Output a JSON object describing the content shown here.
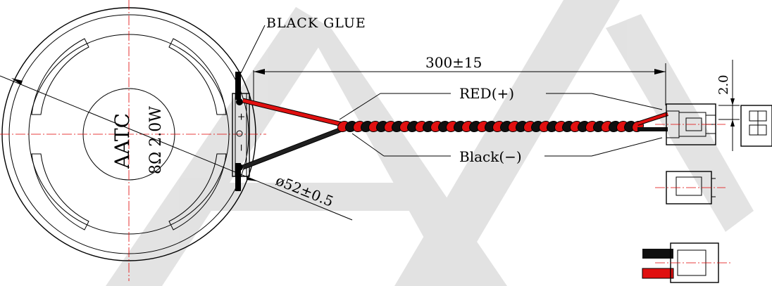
{
  "labels": {
    "black_glue": "BLACK GLUE",
    "length": "300±15",
    "red_wire": "RED(+)",
    "black_wire": "Black(−)",
    "diameter": "ø52±0.5",
    "pitch": "2.0",
    "brand": "AATC",
    "spec": "8Ω 2.0W",
    "plus": "+",
    "minus": "−"
  },
  "colors": {
    "red_wire": "#e01010",
    "black_wire": "#101010",
    "centerline": "#e00000",
    "watermark": "#d8d8d8"
  }
}
